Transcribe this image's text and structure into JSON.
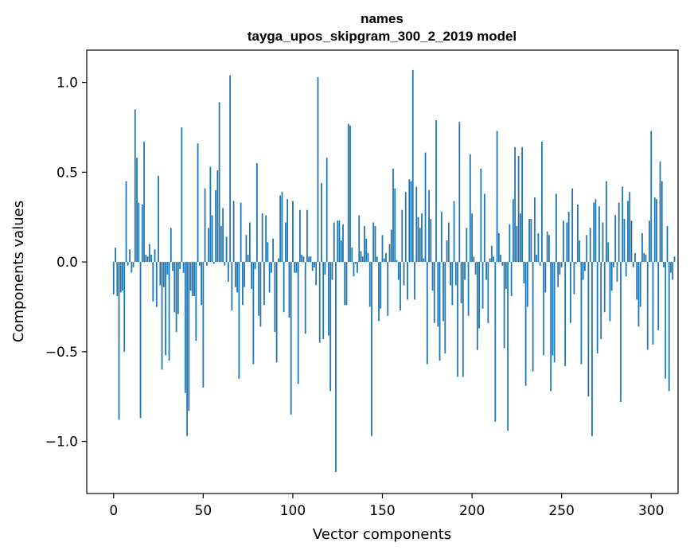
{
  "chart_data": {
    "type": "bar",
    "title": "names",
    "subtitle": "tayga_upos_skipgram_300_2_2019 model",
    "xlabel": "Vector components",
    "ylabel": "Components values",
    "xlim": [
      -15,
      315
    ],
    "ylim": [
      -1.29,
      1.18
    ],
    "xticks": [
      0,
      50,
      100,
      150,
      200,
      250,
      300
    ],
    "xtick_labels": [
      "0",
      "50",
      "100",
      "150",
      "200",
      "250",
      "300"
    ],
    "yticks": [
      -1.0,
      -0.5,
      0.0,
      0.5,
      1.0
    ],
    "ytick_labels": [
      "−1.0",
      "−0.5",
      "0.0",
      "0.5",
      "1.0"
    ],
    "grid": false,
    "bar_color": "#1f77b4",
    "values": [
      -0.18,
      0.08,
      -0.19,
      -0.88,
      -0.17,
      -0.16,
      -0.5,
      0.45,
      -0.02,
      0.07,
      -0.06,
      -0.03,
      0.85,
      0.58,
      0.33,
      -0.87,
      0.32,
      0.67,
      0.04,
      0.03,
      0.1,
      0.04,
      -0.22,
      0.07,
      -0.25,
      0.48,
      -0.13,
      -0.6,
      -0.14,
      -0.52,
      -0.07,
      -0.55,
      0.19,
      -0.05,
      -0.28,
      -0.39,
      -0.29,
      -0.04,
      0.75,
      -0.06,
      -0.73,
      -0.97,
      -0.83,
      -0.16,
      -0.19,
      -0.19,
      -0.44,
      0.66,
      -0.02,
      -0.24,
      -0.7,
      0.41,
      -0.02,
      0.19,
      0.53,
      0.26,
      -0.01,
      0.4,
      0.51,
      0.89,
      0.2,
      0.3,
      -0.02,
      0.14,
      -0.11,
      1.04,
      -0.27,
      0.34,
      -0.14,
      -0.17,
      -0.65,
      0.33,
      -0.24,
      -0.14,
      0.15,
      0.04,
      0.22,
      -0.15,
      -0.57,
      -0.04,
      0.55,
      -0.3,
      -0.36,
      0.27,
      -0.24,
      0.26,
      0.11,
      -0.17,
      -0.06,
      0.13,
      -0.39,
      -0.56,
      0.02,
      0.37,
      0.39,
      -0.28,
      0.22,
      0.35,
      -0.31,
      -0.85,
      0.34,
      -0.06,
      -0.06,
      -0.68,
      0.29,
      0.04,
      0.03,
      -0.4,
      0.29,
      0.03,
      0.03,
      -0.05,
      -0.03,
      -0.13,
      1.03,
      -0.45,
      0.44,
      -0.43,
      -0.07,
      0.58,
      -0.41,
      -0.72,
      -0.1,
      0.22,
      -1.17,
      0.23,
      0.23,
      0.12,
      0.21,
      -0.24,
      -0.24,
      0.77,
      0.76,
      0.08,
      -0.08,
      -0.01,
      -0.06,
      0.26,
      0.06,
      0.03,
      0.2,
      0.13,
      0.05,
      -0.25,
      -0.97,
      0.22,
      0.2,
      0.03,
      -0.33,
      -0.26,
      0.15,
      0.02,
      0.05,
      -0.3,
      0.1,
      0.18,
      0.52,
      0.41,
      0.01,
      -0.1,
      -0.27,
      0.29,
      -0.13,
      0.39,
      -0.21,
      0.46,
      0.45,
      1.07,
      -0.21,
      0.42,
      0.25,
      0.19,
      0.27,
      0.02,
      0.61,
      -0.57,
      0.4,
      0.24,
      -0.16,
      -0.34,
      0.79,
      -0.36,
      -0.55,
      0.28,
      -0.33,
      -0.51,
      0.12,
      0.22,
      -0.13,
      -0.24,
      0.34,
      -0.13,
      -0.64,
      0.78,
      -0.23,
      -0.64,
      -0.1,
      0.19,
      -0.3,
      0.6,
      0.27,
      0.03,
      -0.07,
      -0.49,
      -0.37,
      0.52,
      -0.26,
      0.38,
      -0.1,
      -0.34,
      0.02,
      0.09,
      0.03,
      -0.89,
      0.73,
      0.16,
      0.04,
      -0.02,
      -0.48,
      -0.15,
      -0.94,
      0.21,
      -0.19,
      0.35,
      0.64,
      0.2,
      0.59,
      0.27,
      0.64,
      -0.12,
      -0.69,
      -0.25,
      0.24,
      0.24,
      -0.61,
      0.36,
      0.04,
      0.16,
      -0.02,
      0.67,
      -0.52,
      -0.17,
      0.17,
      0.15,
      -0.72,
      -0.52,
      -0.56,
      0.38,
      -0.14,
      -0.07,
      -0.03,
      0.23,
      -0.58,
      0.22,
      0.28,
      -0.34,
      0.41,
      -0.18,
      -0.01,
      0.32,
      0.12,
      -0.57,
      -0.1,
      -0.05,
      0.15,
      -0.75,
      0.19,
      -0.97,
      0.33,
      0.35,
      -0.51,
      0.31,
      -0.43,
      0.22,
      -0.28,
      0.45,
      0.11,
      -0.33,
      -0.16,
      -0.03,
      0.26,
      -0.11,
      0.33,
      -0.78,
      0.42,
      0.24,
      -0.08,
      0.34,
      0.39,
      0.23,
      -0.03,
      0.05,
      -0.21,
      -0.36,
      -0.25,
      0.16,
      0.05,
      0.04,
      -0.49,
      0.23,
      0.73,
      -0.46,
      0.36,
      0.35,
      -0.38,
      0.56,
      0.45,
      -0.03,
      -0.65,
      0.2,
      -0.72,
      -0.06,
      -0.1,
      0.03
    ]
  }
}
